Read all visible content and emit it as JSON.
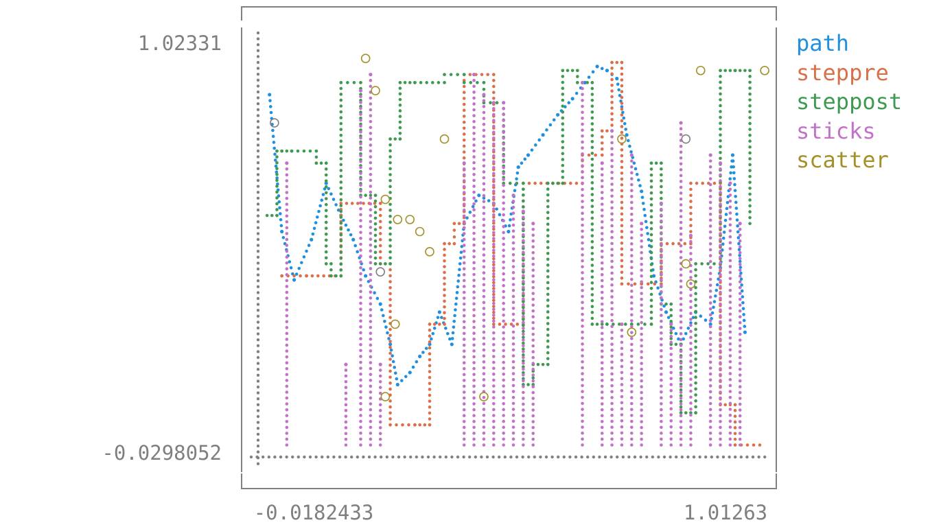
{
  "chart_data": {
    "type": "line",
    "title": "",
    "xlabel": "",
    "ylabel": "",
    "xlim": [
      -0.0182433,
      1.01263
    ],
    "ylim": [
      -0.0298052,
      1.02331
    ],
    "x_ticks": [
      "-0.0182433",
      "1.01263"
    ],
    "y_ticks": [
      "1.02331",
      "-0.0298052"
    ],
    "legend_position": "right",
    "grid": false,
    "series": [
      {
        "name": "path",
        "style": "path",
        "color": "#1f8fdf",
        "x": [
          0.005,
          0.03,
          0.055,
          0.09,
          0.12,
          0.15,
          0.175,
          0.2,
          0.23,
          0.25,
          0.265,
          0.29,
          0.31,
          0.33,
          0.35,
          0.375,
          0.4,
          0.43,
          0.46,
          0.49,
          0.51,
          0.53,
          0.56,
          0.59,
          0.62,
          0.645,
          0.67,
          0.69,
          0.71,
          0.73,
          0.76,
          0.785,
          0.81,
          0.84,
          0.87,
          0.9,
          0.92,
          0.945,
          0.97
        ],
        "y": [
          0.87,
          0.53,
          0.41,
          0.51,
          0.65,
          0.57,
          0.51,
          0.42,
          0.35,
          0.25,
          0.15,
          0.18,
          0.22,
          0.25,
          0.33,
          0.25,
          0.55,
          0.62,
          0.6,
          0.53,
          0.69,
          0.72,
          0.77,
          0.82,
          0.86,
          0.9,
          0.94,
          0.93,
          0.91,
          0.77,
          0.63,
          0.42,
          0.33,
          0.25,
          0.33,
          0.3,
          0.44,
          0.72,
          0.28
        ]
      },
      {
        "name": "steppre",
        "style": "steppre",
        "color": "#d9704a",
        "x": [
          0.03,
          0.08,
          0.15,
          0.23,
          0.25,
          0.3,
          0.33,
          0.36,
          0.38,
          0.4,
          0.46,
          0.52,
          0.58,
          0.64,
          0.68,
          0.7,
          0.72,
          0.76,
          0.8,
          0.86,
          0.92,
          0.95,
          1.0
        ],
        "y": [
          0.42,
          0.42,
          0.42,
          0.6,
          0.45,
          0.05,
          0.05,
          0.3,
          0.5,
          0.55,
          0.92,
          0.3,
          0.65,
          0.65,
          0.72,
          0.78,
          0.95,
          0.4,
          0.4,
          0.5,
          0.65,
          0.1,
          0.0
        ]
      },
      {
        "name": "steppost",
        "style": "steppost",
        "color": "#3d9a50",
        "x": [
          0.0,
          0.02,
          0.03,
          0.05,
          0.1,
          0.12,
          0.13,
          0.15,
          0.19,
          0.22,
          0.25,
          0.27,
          0.3,
          0.36,
          0.4,
          0.44,
          0.48,
          0.52,
          0.54,
          0.57,
          0.6,
          0.63,
          0.66,
          0.69,
          0.74,
          0.78,
          0.8,
          0.82,
          0.84,
          0.87,
          0.92,
          0.95,
          0.98
        ],
        "y": [
          0.57,
          0.73,
          0.73,
          0.73,
          0.7,
          0.45,
          0.42,
          0.9,
          0.62,
          0.45,
          0.76,
          0.9,
          0.9,
          0.92,
          0.9,
          0.85,
          0.65,
          0.15,
          0.2,
          0.65,
          0.93,
          0.9,
          0.3,
          0.3,
          0.3,
          0.7,
          0.35,
          0.25,
          0.08,
          0.45,
          0.93,
          0.93,
          0.55
        ]
      },
      {
        "name": "sticks",
        "style": "sticks",
        "color": "#c271c8",
        "x": [
          0.04,
          0.16,
          0.19,
          0.21,
          0.23,
          0.4,
          0.42,
          0.44,
          0.46,
          0.48,
          0.5,
          0.52,
          0.54,
          0.64,
          0.68,
          0.7,
          0.72,
          0.74,
          0.76,
          0.8,
          0.82,
          0.84,
          0.86,
          0.9,
          0.92,
          0.94,
          0.96
        ],
        "y": [
          0.7,
          0.2,
          0.88,
          0.92,
          0.2,
          0.7,
          0.92,
          0.87,
          0.85,
          0.85,
          0.62,
          0.58,
          0.55,
          0.9,
          0.7,
          0.78,
          0.3,
          0.72,
          0.55,
          0.6,
          0.3,
          0.8,
          0.52,
          0.72,
          0.7,
          0.65,
          0.55
        ]
      },
      {
        "name": "scatter",
        "style": "scatter",
        "color": "#a39029",
        "x": [
          0.015,
          0.2,
          0.24,
          0.22,
          0.265,
          0.29,
          0.31,
          0.33,
          0.36,
          0.44,
          0.74,
          0.72,
          0.85,
          0.88,
          1.01,
          0.23,
          0.86,
          0.85,
          0.24,
          0.26
        ],
        "y": [
          0.8,
          0.96,
          0.61,
          0.88,
          0.56,
          0.56,
          0.53,
          0.48,
          0.76,
          0.12,
          0.28,
          0.76,
          0.45,
          0.93,
          0.93,
          0.43,
          0.4,
          0.76,
          0.12,
          0.3
        ]
      }
    ]
  }
}
